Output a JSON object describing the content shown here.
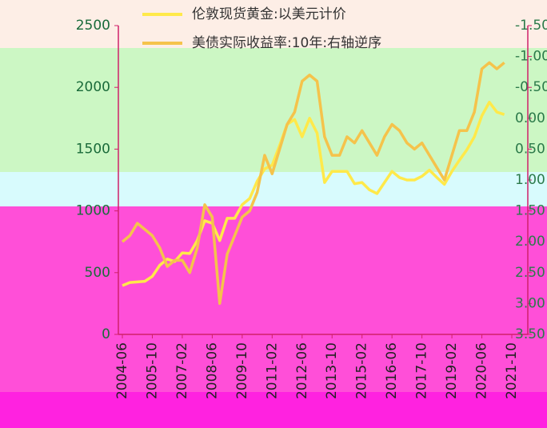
{
  "chart_data": {
    "type": "line",
    "series": [
      {
        "name": "伦敦现货黄金:以美元计价",
        "color": "#ffe94a",
        "values": [
          395,
          420,
          425,
          430,
          470,
          560,
          610,
          590,
          660,
          655,
          760,
          920,
          900,
          760,
          940,
          940,
          1050,
          1100,
          1240,
          1340,
          1370,
          1530,
          1700,
          1740,
          1600,
          1750,
          1630,
          1230,
          1320,
          1320,
          1320,
          1220,
          1230,
          1170,
          1140,
          1230,
          1320,
          1270,
          1250,
          1250,
          1280,
          1330,
          1270,
          1215,
          1320,
          1410,
          1495,
          1600,
          1770,
          1880,
          1800,
          1780,
          null
        ]
      },
      {
        "name": "美债实际收益率:10年:右轴逆序",
        "color": "#f5c34b",
        "axis": "y2",
        "values": [
          2.0,
          1.9,
          1.7,
          1.8,
          1.9,
          2.1,
          2.4,
          2.3,
          2.3,
          2.5,
          2.1,
          1.4,
          1.6,
          3.0,
          2.2,
          1.9,
          1.6,
          1.5,
          1.2,
          0.6,
          0.9,
          0.5,
          0.1,
          -0.1,
          -0.6,
          -0.7,
          -0.6,
          0.3,
          0.6,
          0.6,
          0.3,
          0.4,
          0.2,
          0.4,
          0.6,
          0.3,
          0.1,
          0.2,
          0.4,
          0.5,
          0.4,
          0.6,
          0.8,
          1.0,
          0.6,
          0.2,
          0.2,
          -0.1,
          -0.8,
          -0.9,
          -0.8,
          -0.9,
          null
        ]
      }
    ],
    "categories": [
      "2004-06",
      null,
      null,
      null,
      "2005-10",
      null,
      null,
      null,
      "2007-02",
      null,
      null,
      null,
      "2008-06",
      null,
      null,
      null,
      "2009-10",
      null,
      null,
      null,
      "2011-02",
      null,
      null,
      null,
      "2012-06",
      null,
      null,
      null,
      "2013-10",
      null,
      null,
      null,
      "2015-02",
      null,
      null,
      null,
      "2016-06",
      null,
      null,
      null,
      "2017-10",
      null,
      null,
      null,
      "2019-02",
      null,
      null,
      null,
      "2020-06",
      null,
      null,
      null,
      "2021-10"
    ],
    "ylim": [
      0,
      2500
    ],
    "yticks": [
      0,
      500,
      1000,
      1500,
      2000,
      2500
    ],
    "y2lim": [
      -1.5,
      3.5
    ],
    "y2_inverted": true,
    "y2ticks": [
      {
        "value": -1.5,
        "label": "-1.50"
      },
      {
        "value": -1.0,
        "label": "-1.00"
      },
      {
        "value": -0.5,
        "label": "-0.50"
      },
      {
        "value": 0,
        "label": "0.00"
      },
      {
        "value": 0.5,
        "label": "0.50"
      },
      {
        "value": 1.0,
        "label": "1.00"
      },
      {
        "value": 1.5,
        "label": "1.50"
      },
      {
        "value": 2.0,
        "label": "2.00"
      },
      {
        "value": 2.5,
        "label": "2.50"
      },
      {
        "value": 3.0,
        "label": "3.00"
      },
      {
        "value": 3.5,
        "label": "3.50"
      }
    ]
  }
}
